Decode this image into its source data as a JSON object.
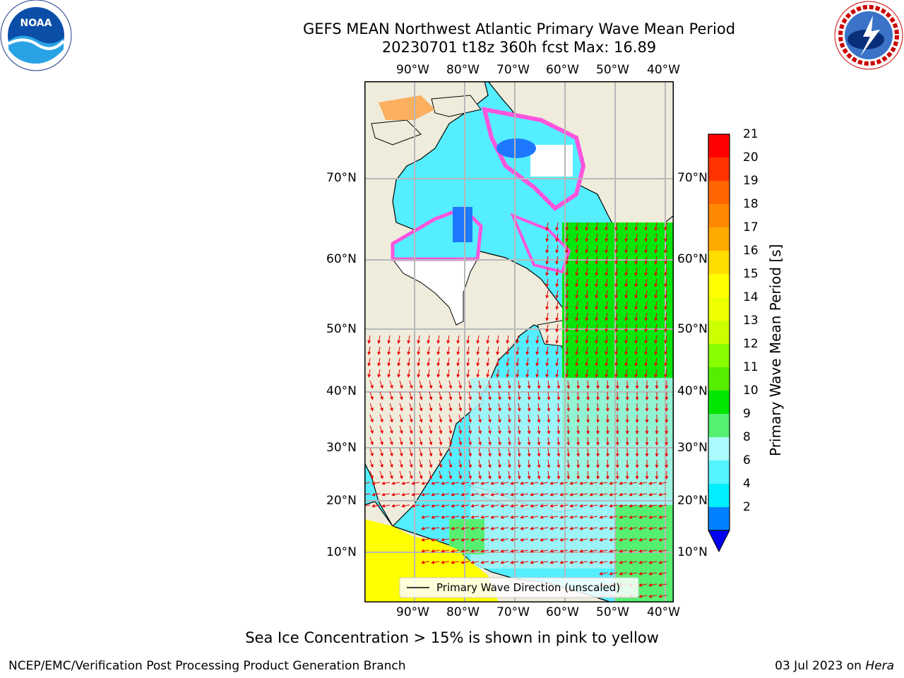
{
  "header": {
    "title": "GEFS MEAN Northwest Atlantic Primary Wave Mean Period",
    "subtitle": "20230701 t18z 360h fcst   Max: 16.89"
  },
  "logos": {
    "left": {
      "icon": "noaa-logo",
      "text": "NOAA",
      "ring_text": "NATIONAL OCEANIC AND ATMOSPHERIC ADMINISTRATION · U.S. DEPARTMENT OF COMMERCE"
    },
    "right": {
      "icon": "nws-logo",
      "ring_text": "NATIONAL WEATHER SERVICE"
    }
  },
  "map": {
    "lon_labels": [
      "90°W",
      "80°W",
      "70°W",
      "60°W",
      "50°W",
      "40°W"
    ],
    "lat_labels": [
      "70°N",
      "60°N",
      "50°N",
      "40°N",
      "30°N",
      "20°N",
      "10°N"
    ],
    "legend_label": "Primary Wave Direction (unscaled)",
    "colors": {
      "land": "#efecdc",
      "ice_pink": "#ff55dd",
      "ice_orange": "#ffa040",
      "ice_white": "#ffffff",
      "ocean_light": "#aaf5f5",
      "ocean_cyan": "#55eeff",
      "ocean_deep": "#00ccff",
      "blue": "#1e78ff",
      "green": "#00e600",
      "lightgreen": "#55f070",
      "yellow": "#ffff00",
      "arrows": "#ee0000",
      "grid": "#b8b8b8"
    }
  },
  "colorbar": {
    "label": "Primary Wave Mean Period [s]",
    "ticks": [
      "21",
      "20",
      "19",
      "18",
      "17",
      "16",
      "15",
      "14",
      "13",
      "12",
      "11",
      "10",
      "9",
      "8",
      "6",
      "4",
      "2"
    ],
    "colors": [
      "#ff0000",
      "#ff3300",
      "#ff6600",
      "#ff8800",
      "#ffaa00",
      "#ffdd00",
      "#ffff00",
      "#eeff00",
      "#ccff00",
      "#88ff00",
      "#55ee00",
      "#00e600",
      "#55f070",
      "#aafcfc",
      "#55f5ff",
      "#00eeff",
      "#0080ff"
    ],
    "under_color": "#0000ee"
  },
  "footer": {
    "note": "Sea Ice Concentration > 15% is shown in pink to yellow",
    "left": "NCEP/EMC/Verification Post Processing Product Generation Branch",
    "right_date": "03 Jul 2023 on ",
    "right_host": "Hera"
  }
}
